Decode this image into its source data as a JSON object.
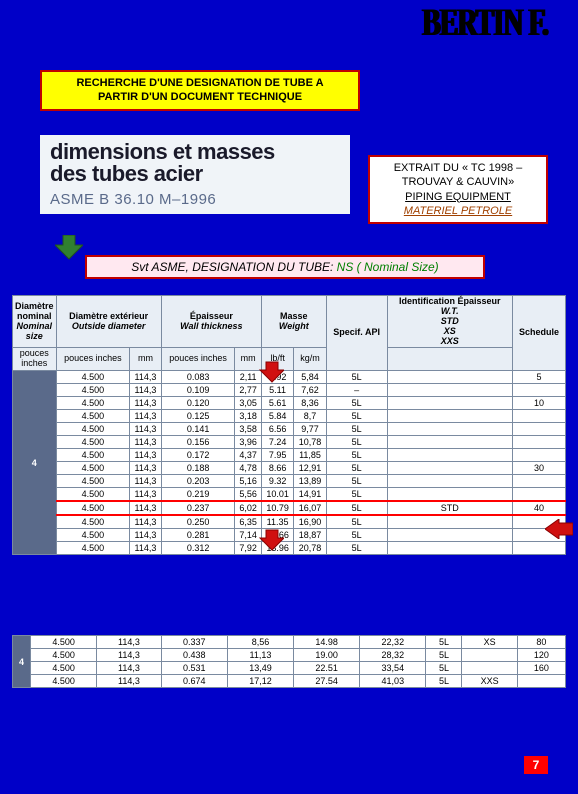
{
  "logo": "BERTIN F.",
  "title": {
    "line1": "RECHERCHE D'UNE DESIGNATION DE TUBE A",
    "line2": "PARTIR D'UN DOCUMENT TECHNIQUE"
  },
  "doc_header": {
    "l1": "dimensions et masses",
    "l2": "des tubes acier",
    "std": "ASME B 36.10 M–1996"
  },
  "extract": {
    "l1": "EXTRAIT DU « TC 1998 –",
    "l2": "TROUVAY & CAUVIN»",
    "l3": "PIPING EQUIPMENT",
    "l4": "MATERIEL PETROLE"
  },
  "tube": {
    "prefix": "Svt ASME, DESIGNATION DU TUBE: ",
    "val": "NS ( Nominal Size)"
  },
  "headers": {
    "c1a": "Diamètre nominal",
    "c1b": "Nominal size",
    "c1u": "pouces inches",
    "c2a": "Diamètre extérieur",
    "c2b": "Outside diameter",
    "c2u1": "pouces inches",
    "c2u2": "mm",
    "c3a": "Épaisseur",
    "c3b": "Wall thickness",
    "c3u1": "pouces inches",
    "c3u2": "mm",
    "c4a": "Masse",
    "c4b": "Weight",
    "c4u1": "lb/ft",
    "c4u2": "kg/m",
    "c5": "Specif. API",
    "c6a": "Identification Épaisseur",
    "c6b": "W.T.",
    "c6c": "STD",
    "c6d": "XS",
    "c6e": "XXS",
    "c7": "Schedule"
  },
  "rows1": [
    [
      "4.500",
      "114,3",
      "0.083",
      "2,11",
      "3.92",
      "5,84",
      "5L",
      "",
      "5"
    ],
    [
      "4.500",
      "114,3",
      "0.109",
      "2,77",
      "5.11",
      "7,62",
      "–",
      "",
      ""
    ],
    [
      "4.500",
      "114,3",
      "0.120",
      "3,05",
      "5.61",
      "8,36",
      "5L",
      "",
      "10"
    ],
    [
      "4.500",
      "114,3",
      "0.125",
      "3,18",
      "5.84",
      "8,7",
      "5L",
      "",
      ""
    ],
    [
      "4.500",
      "114,3",
      "0.141",
      "3,58",
      "6.56",
      "9,77",
      "5L",
      "",
      ""
    ],
    [
      "4.500",
      "114,3",
      "0.156",
      "3,96",
      "7.24",
      "10,78",
      "5L",
      "",
      ""
    ],
    [
      "4.500",
      "114,3",
      "0.172",
      "4,37",
      "7.95",
      "11,85",
      "5L",
      "",
      ""
    ],
    [
      "4.500",
      "114,3",
      "0.188",
      "4,78",
      "8.66",
      "12,91",
      "5L",
      "",
      "30"
    ],
    [
      "4.500",
      "114,3",
      "0.203",
      "5,16",
      "9.32",
      "13,89",
      "5L",
      "",
      ""
    ],
    [
      "4.500",
      "114,3",
      "0.219",
      "5,56",
      "10.01",
      "14,91",
      "5L",
      "",
      ""
    ],
    [
      "4.500",
      "114,3",
      "0.237",
      "6,02",
      "10.79",
      "16,07",
      "5L",
      "STD",
      "40"
    ],
    [
      "4.500",
      "114,3",
      "0.250",
      "6,35",
      "11.35",
      "16,90",
      "5L",
      "",
      ""
    ],
    [
      "4.500",
      "114,3",
      "0.281",
      "7,14",
      "12.66",
      "18,87",
      "5L",
      "",
      ""
    ],
    [
      "4.500",
      "114,3",
      "0.312",
      "7,92",
      "13.96",
      "20,78",
      "5L",
      "",
      ""
    ]
  ],
  "highlight_index": 10,
  "row1_label": "4",
  "rows2": [
    [
      "4.500",
      "114,3",
      "0.337",
      "8,56",
      "14.98",
      "22,32",
      "5L",
      "XS",
      "80"
    ],
    [
      "4.500",
      "114,3",
      "0.438",
      "11,13",
      "19.00",
      "28,32",
      "5L",
      "",
      "120"
    ],
    [
      "4.500",
      "114,3",
      "0.531",
      "13,49",
      "22.51",
      "33,54",
      "5L",
      "",
      "160"
    ],
    [
      "4.500",
      "114,3",
      "0.674",
      "17,12",
      "27.54",
      "41,03",
      "5L",
      "XXS",
      ""
    ]
  ],
  "row2_label": "4",
  "page": "7",
  "colors": {
    "bg": "#0000c8",
    "yellow": "#ffff00",
    "red_border": "#c00000",
    "red_arrow": "#d01010",
    "green_arrow": "#308030"
  }
}
